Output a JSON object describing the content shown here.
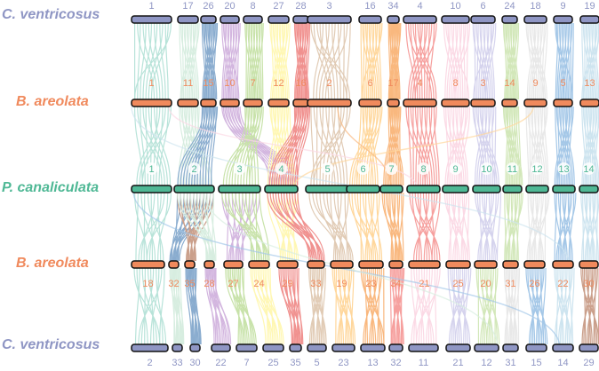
{
  "colors": {
    "ventricosus": "#8f96c4",
    "areolata": "#f08a5d",
    "canaliculata": "#4fb895",
    "chrom_border": "#111111"
  },
  "tracks": [
    {
      "key": "t1",
      "label": "C. ventricosus",
      "color": "#8f96c4",
      "chroms": [
        "1",
        "17",
        "26",
        "20",
        "8",
        "27",
        "28",
        "3",
        "16",
        "34",
        "4",
        "10",
        "6",
        "24",
        "18",
        "9",
        "19"
      ]
    },
    {
      "key": "t2",
      "label": "B. areolata",
      "color": "#f08a5d",
      "chroms": [
        "1",
        "11",
        "15",
        "10",
        "7",
        "12",
        "16",
        "2",
        "6",
        "17",
        "4",
        "8",
        "3",
        "14",
        "9",
        "5",
        "13"
      ]
    },
    {
      "key": "t3",
      "label": "P. canaliculata",
      "color": "#4fb895",
      "chroms": [
        "1",
        "2",
        "3",
        "4",
        "5",
        "6",
        "7",
        "8",
        "9",
        "10",
        "11",
        "12",
        "13",
        "14"
      ]
    },
    {
      "key": "t4",
      "label": "B. areolata",
      "color": "#f08a5d",
      "chroms": [
        "18",
        "32",
        "35",
        "28",
        "27",
        "24",
        "29",
        "33",
        "19",
        "23",
        "34",
        "21",
        "25",
        "20",
        "31",
        "26",
        "22",
        "30"
      ]
    },
    {
      "key": "t5",
      "label": "C. ventricosus",
      "color": "#8f96c4",
      "chroms": [
        "2",
        "33",
        "30",
        "22",
        "7",
        "25",
        "35",
        "5",
        "23",
        "13",
        "32",
        "11",
        "21",
        "12",
        "31",
        "15",
        "14",
        "29"
      ]
    }
  ],
  "link_palette": [
    "#7fcdbb",
    "#b8e0c8",
    "#2b6aa8",
    "#b07cc6",
    "#9ccc65",
    "#fff176",
    "#e53935",
    "#c9a27a",
    "#ffb74d",
    "#f57f17",
    "#ef5350",
    "#f8bbd0",
    "#b3b0e0",
    "#aed581",
    "#d6d6d6",
    "#5b9bd5",
    "#a6cee3",
    "#a0522d"
  ]
}
